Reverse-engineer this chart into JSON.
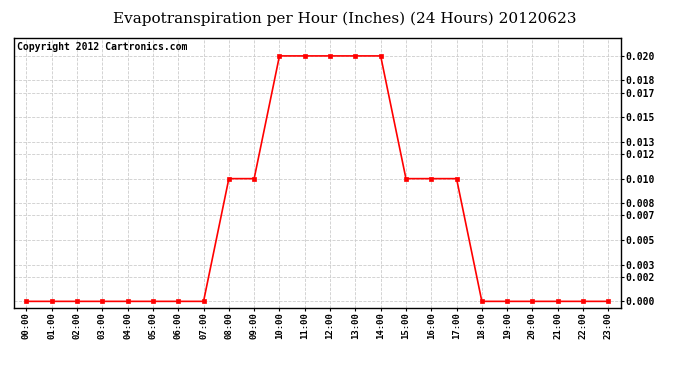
{
  "title": "Evapotranspiration per Hour (Inches) (24 Hours) 20120623",
  "copyright": "Copyright 2012 Cartronics.com",
  "hours": [
    "00:00",
    "01:00",
    "02:00",
    "03:00",
    "04:00",
    "05:00",
    "06:00",
    "07:00",
    "08:00",
    "09:00",
    "10:00",
    "11:00",
    "12:00",
    "13:00",
    "14:00",
    "15:00",
    "16:00",
    "17:00",
    "18:00",
    "19:00",
    "20:00",
    "21:00",
    "22:00",
    "23:00"
  ],
  "values": [
    0.0,
    0.0,
    0.0,
    0.0,
    0.0,
    0.0,
    0.0,
    0.0,
    0.01,
    0.01,
    0.02,
    0.02,
    0.02,
    0.02,
    0.02,
    0.01,
    0.01,
    0.01,
    0.0,
    0.0,
    0.0,
    0.0,
    0.0,
    0.0
  ],
  "line_color": "#ff0000",
  "marker": "s",
  "marker_size": 3,
  "grid_color": "#cccccc",
  "background_color": "#ffffff",
  "title_fontsize": 11,
  "copyright_fontsize": 7,
  "yticks": [
    0.0,
    0.002,
    0.003,
    0.005,
    0.007,
    0.008,
    0.01,
    0.012,
    0.013,
    0.015,
    0.017,
    0.018,
    0.02
  ],
  "ylim": [
    -0.0005,
    0.0215
  ],
  "plot_bg_color": "#ffffff"
}
